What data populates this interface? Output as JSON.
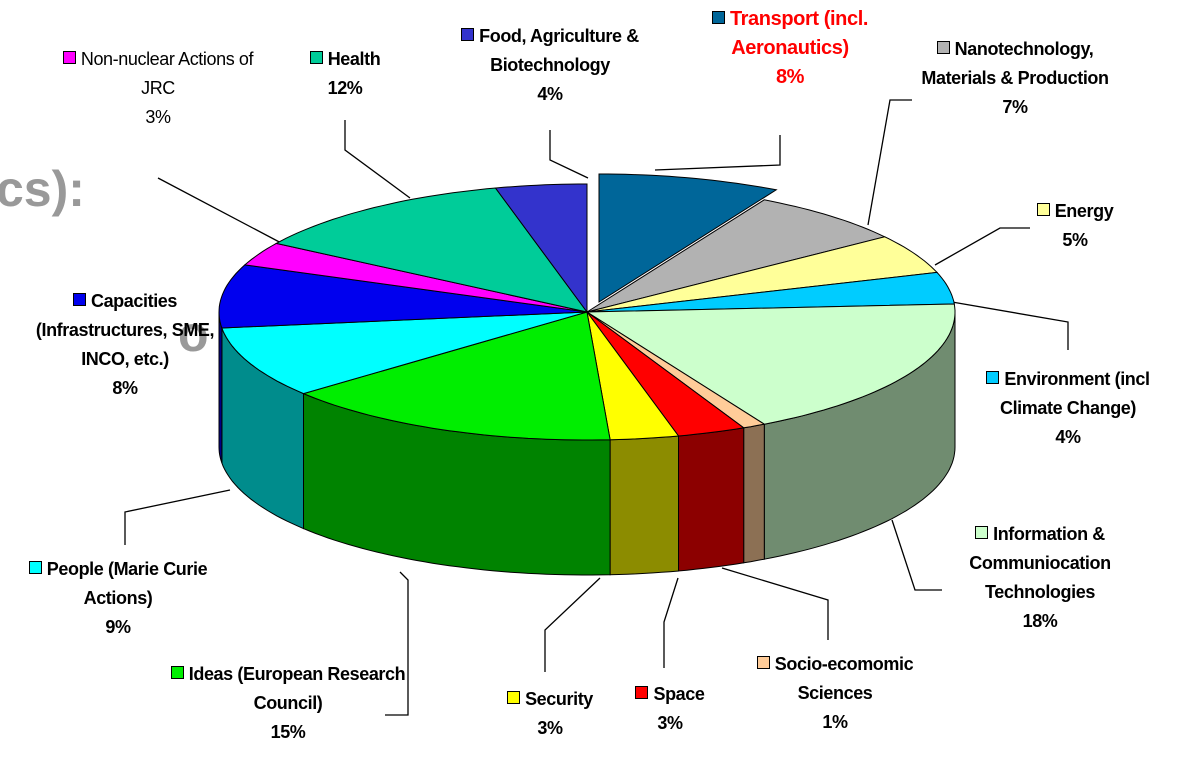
{
  "chart_data": {
    "type": "pie",
    "background_text": [
      "cs):",
      "o"
    ],
    "categories": [
      "Transport (incl. Aeronautics)",
      "Nanotechnology, Materials & Production",
      "Energy",
      "Environment (incl Climate Change)",
      "Information & Communiocation Technologies",
      "Socio-ecomomic Sciences",
      "Space",
      "Security",
      "Ideas (European Research Council)",
      "People (Marie Curie Actions)",
      "Capacities (Infrastructures, SME, INCO, etc.)",
      "Non-nuclear Actions of JRC",
      "Health",
      "Food, Agriculture & Biotechnology"
    ],
    "values": [
      8,
      7,
      5,
      4,
      18,
      1,
      3,
      3,
      15,
      9,
      8,
      3,
      12,
      4
    ],
    "value_labels": [
      "8%",
      "7%",
      "5%",
      "4%",
      "18%",
      "1%",
      "3%",
      "3%",
      "15%",
      "9%",
      "8%",
      "3%",
      "12%",
      "4%"
    ],
    "colors": [
      "#006699",
      "#b2b2b2",
      "#ffff99",
      "#00ccff",
      "#ccffcc",
      "#ffcc99",
      "#ff0000",
      "#ffff00",
      "#00ee00",
      "#00ffff",
      "#0000ee",
      "#ff00ff",
      "#00cc99",
      "#3333cc"
    ]
  }
}
